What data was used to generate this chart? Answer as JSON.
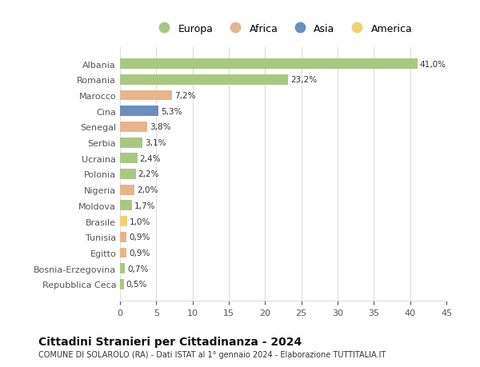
{
  "countries": [
    "Albania",
    "Romania",
    "Marocco",
    "Cina",
    "Senegal",
    "Serbia",
    "Ucraina",
    "Polonia",
    "Nigeria",
    "Moldova",
    "Brasile",
    "Tunisia",
    "Egitto",
    "Bosnia-Erzegovina",
    "Repubblica Ceca"
  ],
  "values": [
    41.0,
    23.2,
    7.2,
    5.3,
    3.8,
    3.1,
    2.4,
    2.2,
    2.0,
    1.7,
    1.0,
    0.9,
    0.9,
    0.7,
    0.5
  ],
  "labels": [
    "41,0%",
    "23,2%",
    "7,2%",
    "5,3%",
    "3,8%",
    "3,1%",
    "2,4%",
    "2,2%",
    "2,0%",
    "1,7%",
    "1,0%",
    "0,9%",
    "0,9%",
    "0,7%",
    "0,5%"
  ],
  "continent": [
    "Europa",
    "Europa",
    "Africa",
    "Asia",
    "Africa",
    "Europa",
    "Europa",
    "Europa",
    "Africa",
    "Europa",
    "America",
    "Africa",
    "Africa",
    "Europa",
    "Europa"
  ],
  "colors": {
    "Europa": "#a8c880",
    "Africa": "#e8b48a",
    "Asia": "#6a8fc0",
    "America": "#f0d070"
  },
  "xlim": [
    0,
    45
  ],
  "xticks": [
    0,
    5,
    10,
    15,
    20,
    25,
    30,
    35,
    40,
    45
  ],
  "legend_order": [
    "Europa",
    "Africa",
    "Asia",
    "America"
  ],
  "title": "Cittadini Stranieri per Cittadinanza - 2024",
  "subtitle": "COMUNE DI SOLAROLO (RA) - Dati ISTAT al 1° gennaio 2024 - Elaborazione TUTTITALIA.IT",
  "background_color": "#ffffff",
  "grid_color": "#dddddd"
}
